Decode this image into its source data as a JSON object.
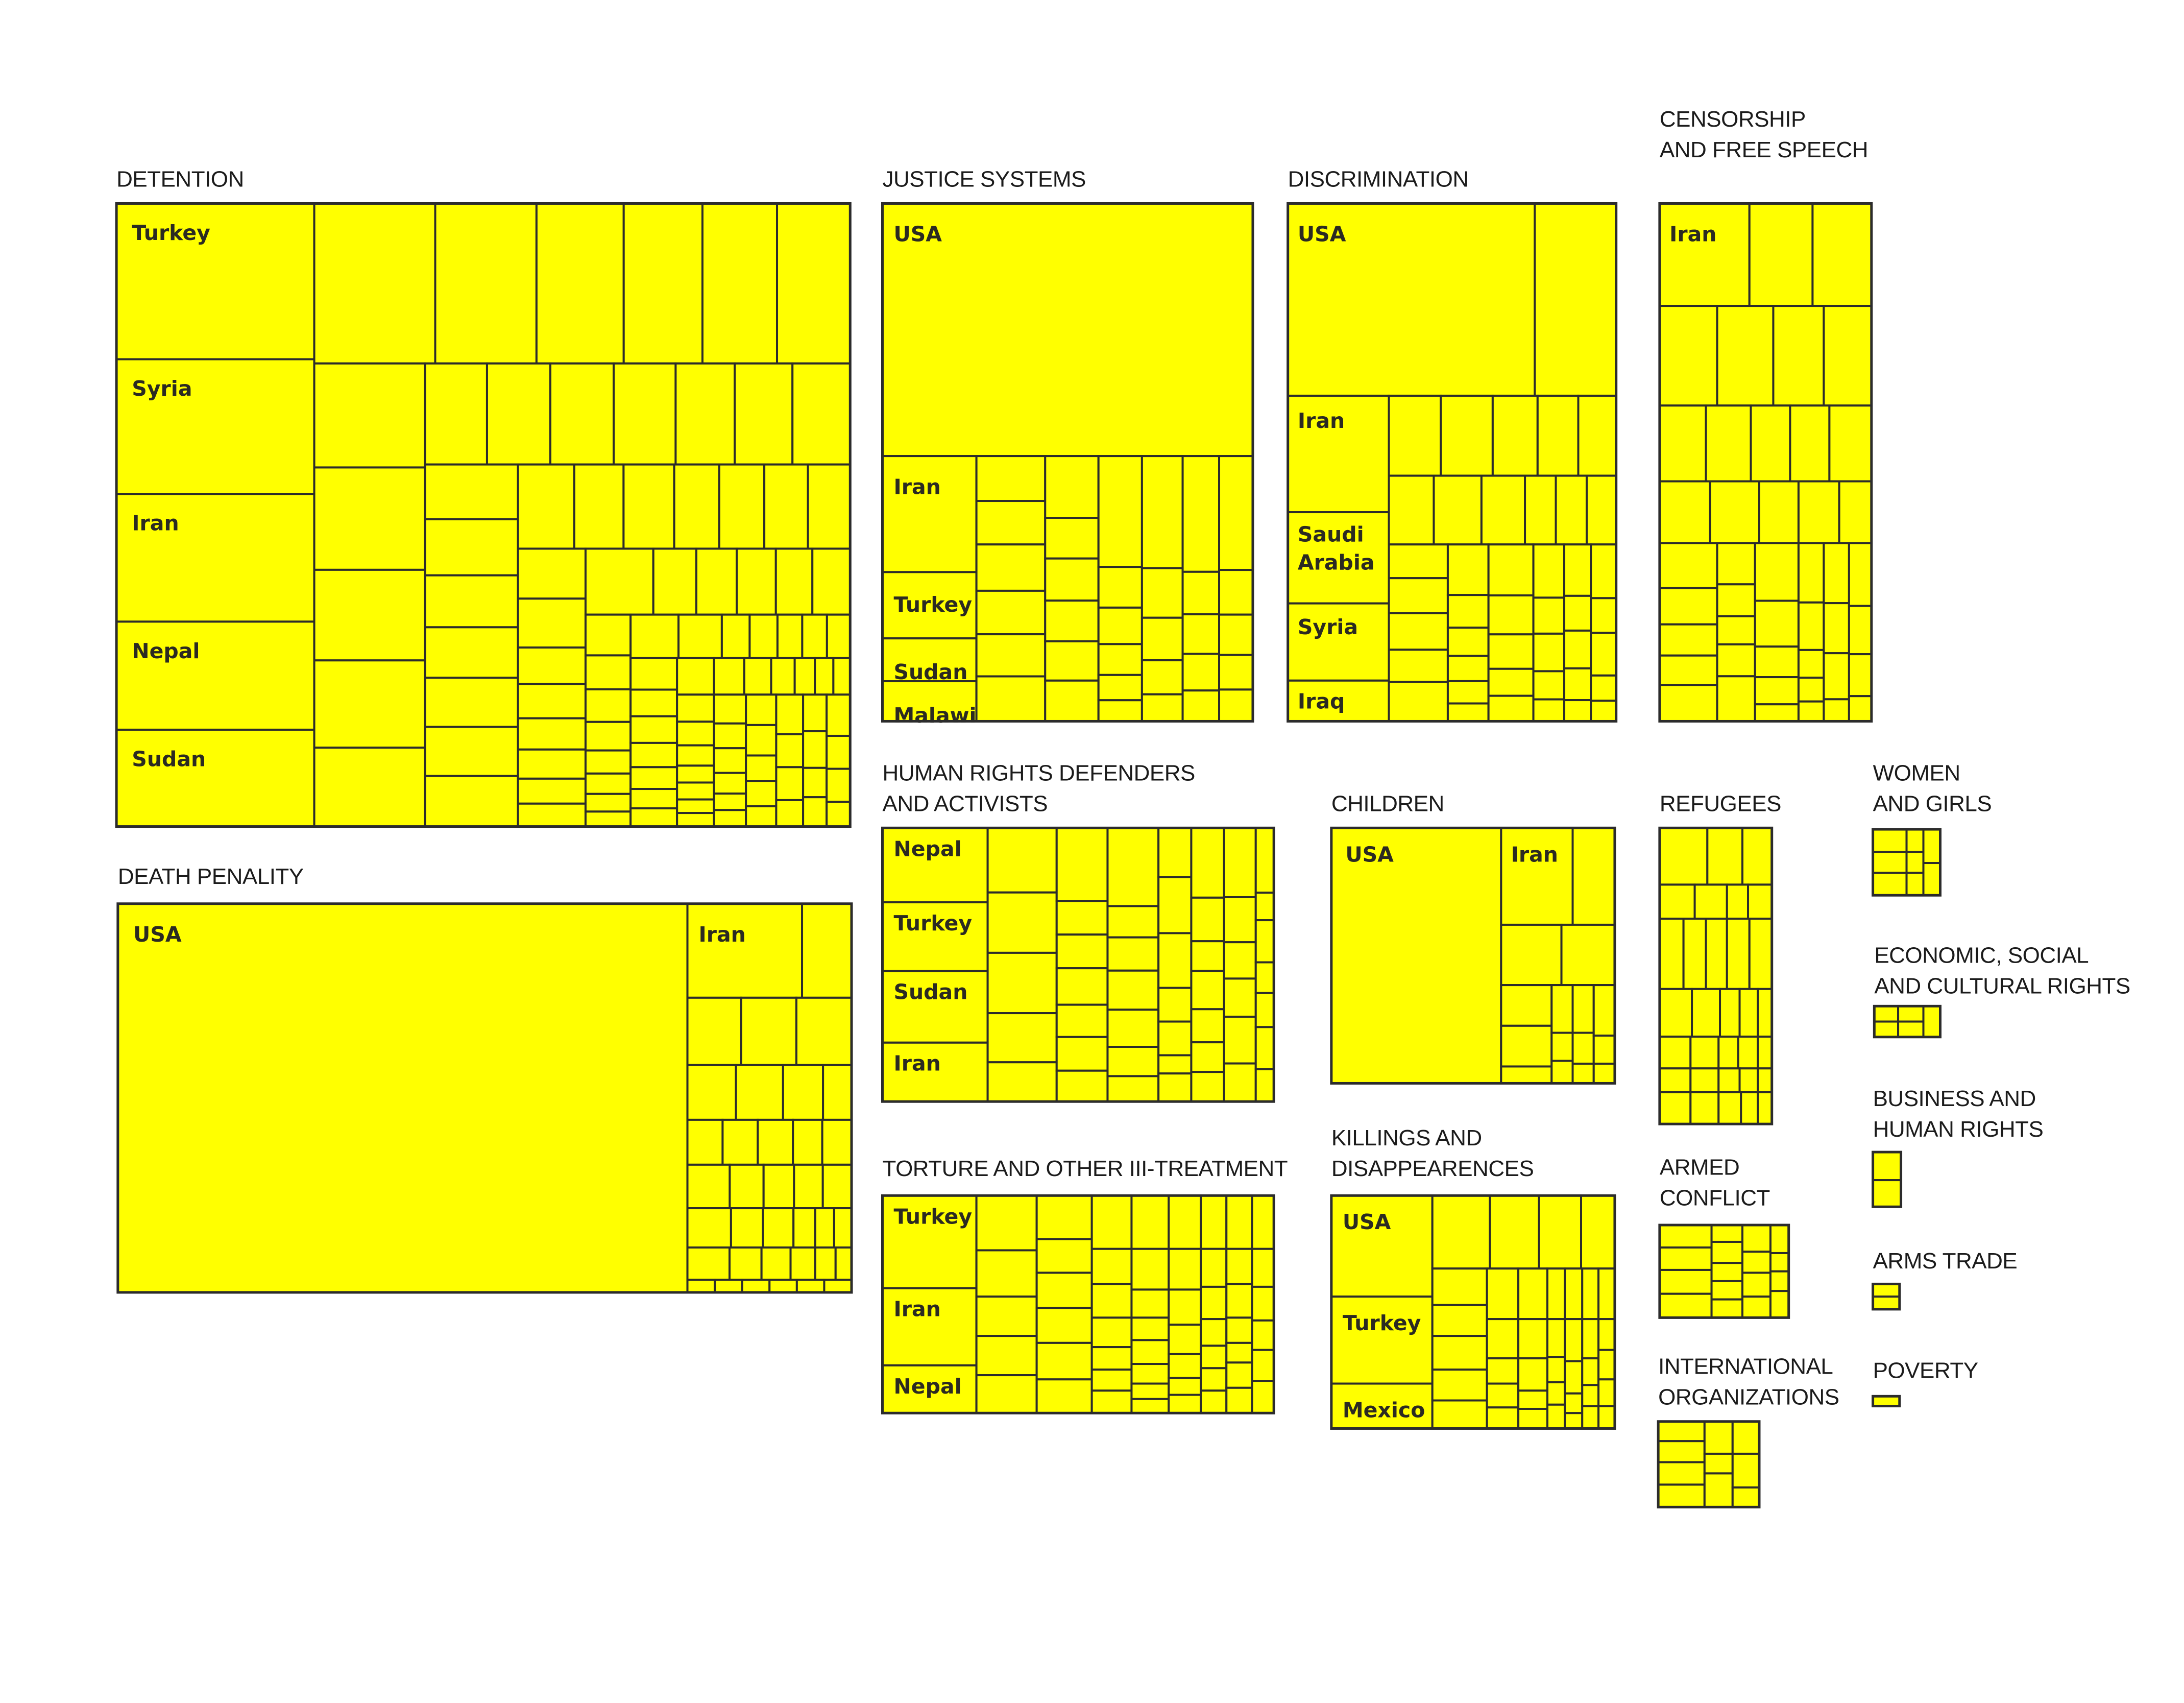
{
  "chart_data": {
    "type": "treemap",
    "fill_color": "#ffff00",
    "stroke_color": "#2c2c2c",
    "panels": [
      {
        "key": "detention",
        "title": [
          "DETENTION"
        ],
        "labels": [
          "Turkey",
          "Syria",
          "Iran",
          "Nepal",
          "Sudan"
        ]
      },
      {
        "key": "justice_systems",
        "title": [
          "JUSTICE SYSTEMS"
        ],
        "labels": [
          "USA",
          "Iran",
          "Turkey",
          "Sudan",
          "Malawi"
        ]
      },
      {
        "key": "discrimination",
        "title": [
          "DISCRIMINATION"
        ],
        "labels": [
          "USA",
          "Iran",
          "Saudi\nArabia",
          "Syria",
          "Iraq"
        ]
      },
      {
        "key": "censorship",
        "title": [
          "CENSORSHIP",
          "AND FREE SPEECH"
        ],
        "labels": [
          "Iran"
        ]
      },
      {
        "key": "death_penalty",
        "title": [
          "DEATH PENALITY"
        ],
        "labels": [
          "USA",
          "Iran"
        ]
      },
      {
        "key": "hrd",
        "title": [
          "HUMAN RIGHTS DEFENDERS",
          "AND ACTIVISTS"
        ],
        "labels": [
          "Nepal",
          "Turkey",
          "Sudan",
          "Iran"
        ]
      },
      {
        "key": "torture",
        "title": [
          "TORTURE AND OTHER III-TREATMENT"
        ],
        "labels": [
          "Turkey",
          "Iran",
          "Nepal"
        ]
      },
      {
        "key": "children",
        "title": [
          "CHILDREN"
        ],
        "labels": [
          "USA",
          "Iran"
        ]
      },
      {
        "key": "killings",
        "title": [
          "KILLINGS AND",
          "DISAPPEARENCES"
        ],
        "labels": [
          "USA",
          "Turkey",
          "Mexico"
        ]
      },
      {
        "key": "refugees",
        "title": [
          "REFUGEES"
        ],
        "labels": []
      },
      {
        "key": "armed_conflict",
        "title": [
          "ARMED",
          "CONFLICT"
        ],
        "labels": []
      },
      {
        "key": "international_orgs",
        "title": [
          "INTERNATIONAL",
          "ORGANIZATIONS"
        ],
        "labels": []
      },
      {
        "key": "women_girls",
        "title": [
          "WOMEN",
          "AND GIRLS"
        ],
        "labels": []
      },
      {
        "key": "escr",
        "title": [
          "ECONOMIC, SOCIAL",
          "AND CULTURAL RIGHTS"
        ],
        "labels": []
      },
      {
        "key": "business_hr",
        "title": [
          "BUSINESS AND",
          "HUMAN RIGHTS"
        ],
        "labels": []
      },
      {
        "key": "arms_trade",
        "title": [
          "ARMS TRADE"
        ],
        "labels": []
      },
      {
        "key": "poverty",
        "title": [
          "POVERTY"
        ],
        "labels": []
      }
    ]
  }
}
